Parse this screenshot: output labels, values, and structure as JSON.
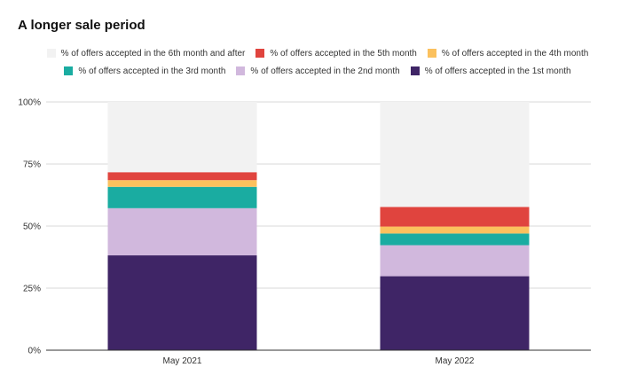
{
  "chart_data": {
    "type": "bar",
    "stacked": true,
    "title": "A longer sale period",
    "xlabel": "",
    "ylabel": "",
    "ylim": [
      0,
      100
    ],
    "y_ticks": [
      "0%",
      "25%",
      "50%",
      "75%",
      "100%"
    ],
    "y_tick_values": [
      0,
      25,
      50,
      75,
      100
    ],
    "categories": [
      "May 2021",
      "May 2022"
    ],
    "grid": true,
    "legend_position": "top",
    "series": [
      {
        "name": "% of offers accepted in the 1st month",
        "color": "#3f2566",
        "values": [
          38.2,
          29.8
        ]
      },
      {
        "name": "% of offers accepted in the 2nd month",
        "color": "#d1b8dd",
        "values": [
          19.0,
          12.5
        ]
      },
      {
        "name": "% of offers accepted in the 3rd month",
        "color": "#1aaca1",
        "values": [
          8.6,
          4.7
        ]
      },
      {
        "name": "% of offers accepted in the 4th month",
        "color": "#fbc15e",
        "values": [
          2.7,
          2.8
        ]
      },
      {
        "name": "% of offers accepted in the 5th month",
        "color": "#e0443e",
        "values": [
          3.2,
          7.9
        ]
      },
      {
        "name": "% of offers accepted in the 6th month and after",
        "color": "#f2f2f2",
        "values": [
          28.3,
          42.3
        ]
      }
    ],
    "legend_order": [
      5,
      4,
      3,
      2,
      1,
      0
    ]
  }
}
